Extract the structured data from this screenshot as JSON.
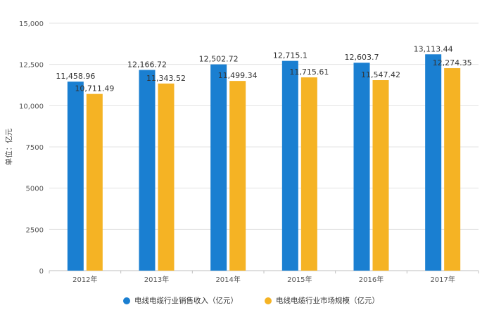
{
  "chart_data": {
    "type": "bar",
    "title": "",
    "xlabel": "",
    "ylabel": "单位：亿元",
    "ylim": [
      0,
      15000
    ],
    "yticks": [
      0,
      2500,
      5000,
      7500,
      10000,
      12500,
      15000
    ],
    "ytick_labels": [
      "0",
      "2500",
      "5000",
      "7500",
      "10,000",
      "12,500",
      "15,000"
    ],
    "categories": [
      "2012年",
      "2013年",
      "2014年",
      "2015年",
      "2016年",
      "2017年"
    ],
    "grid": true,
    "legend_position": "bottom",
    "series": [
      {
        "name": "电线电缆行业销售收入（亿元）",
        "color": "#1a7fd1",
        "values": [
          11458.96,
          12166.72,
          12502.72,
          12715.1,
          12603.7,
          13113.44
        ],
        "labels": [
          "11,458.96",
          "12,166.72",
          "12,502.72",
          "12,715.1",
          "12,603.7",
          "13,113.44"
        ]
      },
      {
        "name": "电线电缆行业市场规模（亿元）",
        "color": "#f5b324",
        "values": [
          10711.49,
          11343.52,
          11499.34,
          11715.61,
          11547.42,
          12274.35
        ],
        "labels": [
          "10,711.49",
          "11,343.52",
          "11,499.34",
          "11,715.61",
          "11,547.42",
          "12,274.35"
        ]
      }
    ]
  }
}
